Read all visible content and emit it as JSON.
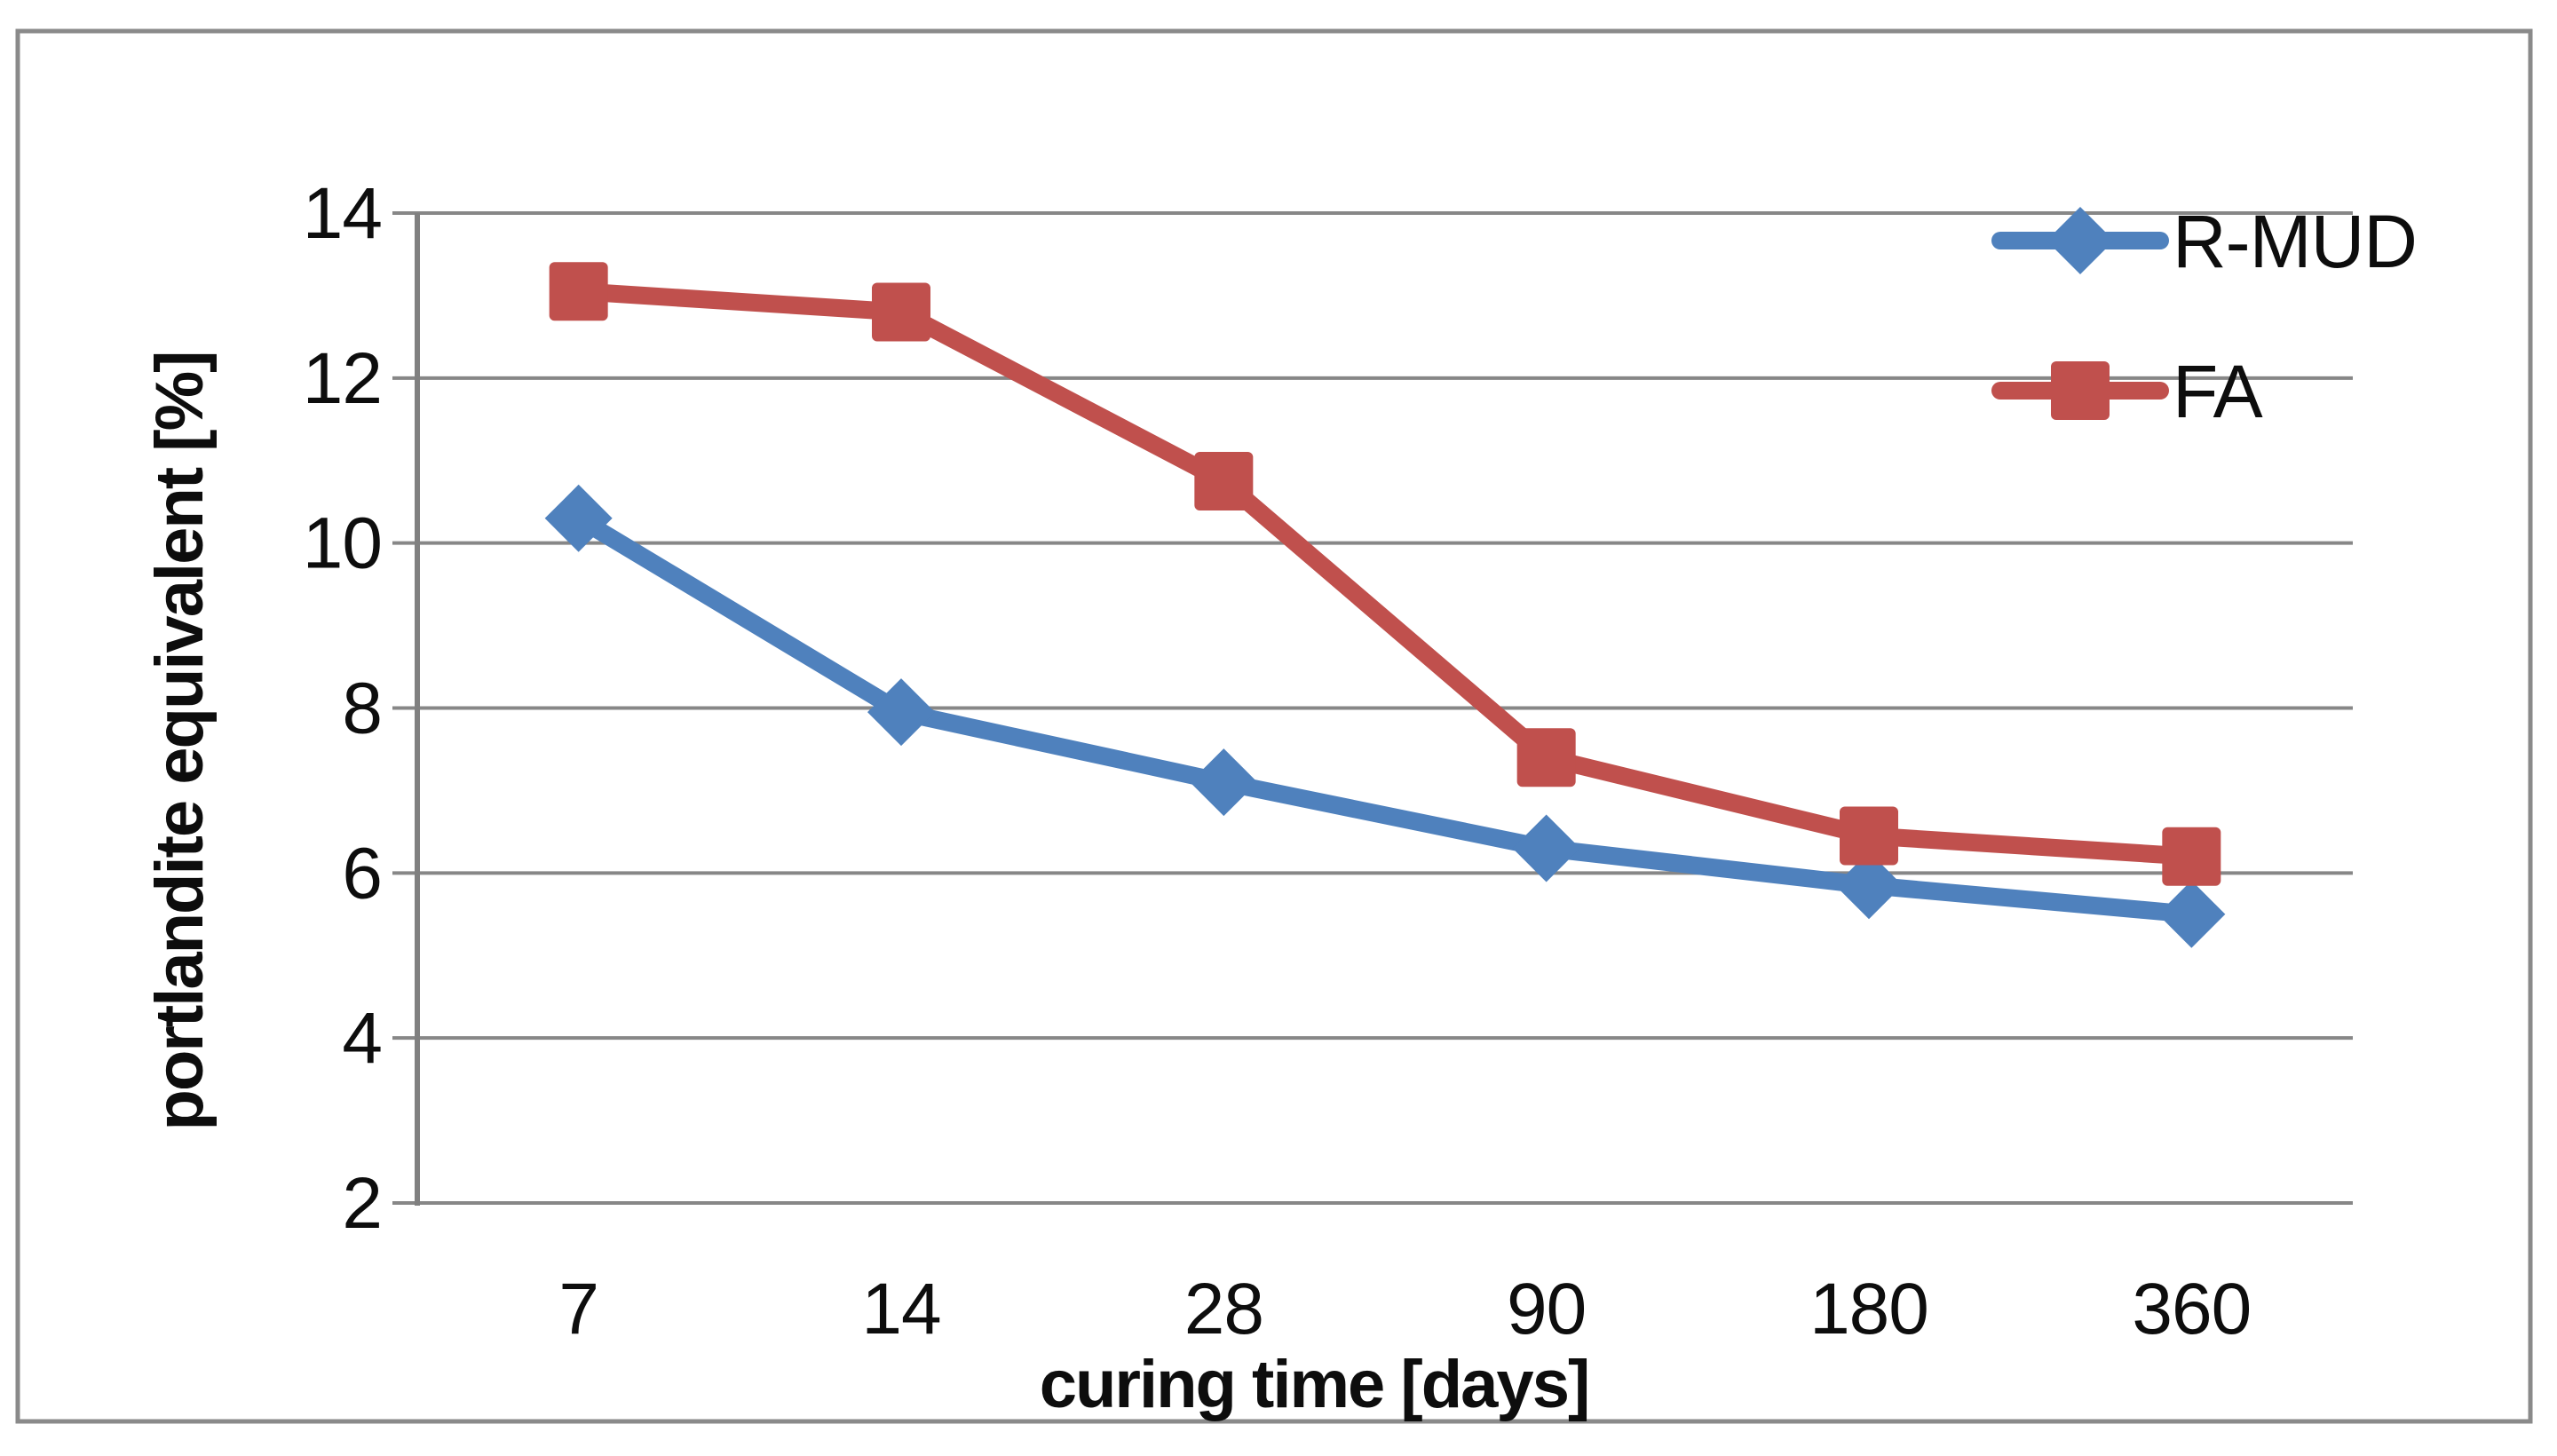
{
  "figure": {
    "background": "#ffffff",
    "border_color": "#8a8a8a",
    "plot_background": "#ffffff"
  },
  "chart_data": {
    "type": "line",
    "title": "",
    "xlabel": "curing time [days]",
    "ylabel": "portlandite equivalent [%]",
    "categories": [
      "7",
      "14",
      "28",
      "90",
      "180",
      "360"
    ],
    "series": [
      {
        "name": "R-MUD",
        "marker": "diamond",
        "color": "#4F81BD",
        "values": [
          10.3,
          7.95,
          7.1,
          6.3,
          5.85,
          5.5
        ]
      },
      {
        "name": "FA",
        "marker": "square",
        "color": "#C0504D",
        "values": [
          13.05,
          12.8,
          10.75,
          7.4,
          6.45,
          6.2
        ]
      }
    ],
    "ylim": [
      2,
      14
    ],
    "ytick_step": 2,
    "ytick_labels": [
      "14",
      "12",
      "10",
      "8",
      "6",
      "4",
      "2"
    ],
    "grid": true,
    "gridline_color": "#878787",
    "axis_line_color": "#808080",
    "legend_position": "top-right",
    "text_color": "#0d0d0d"
  }
}
